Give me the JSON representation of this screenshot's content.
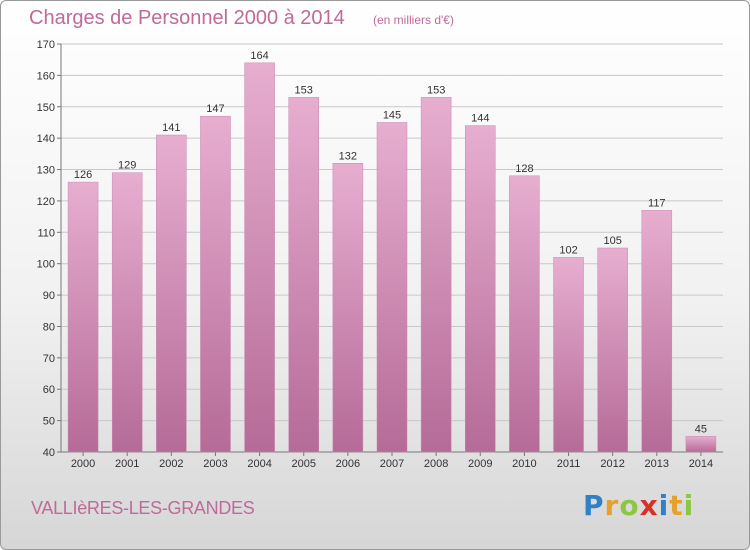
{
  "header": {
    "title": "Charges de Personnel 2000 à 2014",
    "subtitle": "(en milliers d'€)"
  },
  "footer": {
    "town": "VALLIèRES-LES-GRANDES",
    "logo": [
      "P",
      "r",
      "o",
      "x",
      "i",
      "t",
      "i"
    ]
  },
  "colors": {
    "bar_light": "#e7aed0",
    "bar_dark": "#b56b97",
    "title": "#c06a9a",
    "grid": "#c8c8c8"
  },
  "chart_data": {
    "type": "bar",
    "title": "Charges de Personnel 2000 à 2014",
    "subtitle": "(en milliers d'€)",
    "categories": [
      "2000",
      "2001",
      "2002",
      "2003",
      "2004",
      "2005",
      "2006",
      "2007",
      "2008",
      "2009",
      "2010",
      "2011",
      "2012",
      "2013",
      "2014"
    ],
    "values": [
      126,
      129,
      141,
      147,
      164,
      153,
      132,
      145,
      153,
      144,
      128,
      102,
      105,
      117,
      45
    ],
    "ylim": [
      40,
      170
    ],
    "yticks": [
      40,
      50,
      60,
      70,
      80,
      90,
      100,
      110,
      120,
      130,
      140,
      150,
      160,
      170
    ],
    "grid": true,
    "xlabel": "",
    "ylabel": ""
  }
}
